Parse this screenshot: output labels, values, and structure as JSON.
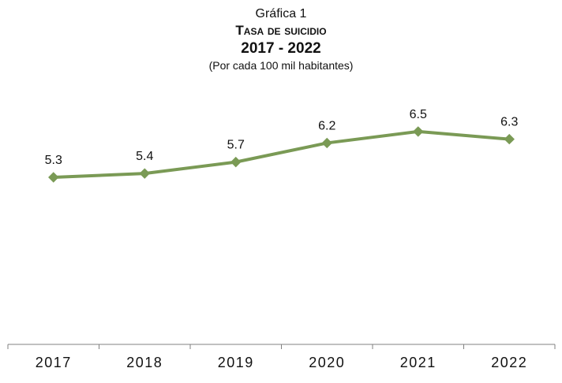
{
  "chart_data": {
    "type": "line",
    "title_label": "Gráfica 1",
    "title": "Tasa de suicidio",
    "period": "2017 - 2022",
    "subtitle": "(Por cada 100 mil habitantes)",
    "categories": [
      "2017",
      "2018",
      "2019",
      "2020",
      "2021",
      "2022"
    ],
    "series": [
      {
        "name": "Tasa de suicidio",
        "values": [
          5.3,
          5.4,
          5.7,
          6.2,
          6.5,
          6.3
        ],
        "labels": [
          "5.3",
          "5.4",
          "5.7",
          "6.2",
          "6.5",
          "6.3"
        ]
      }
    ],
    "xlabel": "",
    "ylabel": "",
    "ylim": [
      0,
      7
    ],
    "grid": false,
    "legend": "none",
    "colors": {
      "line": "#7a9a55",
      "axis": "#808080"
    }
  }
}
